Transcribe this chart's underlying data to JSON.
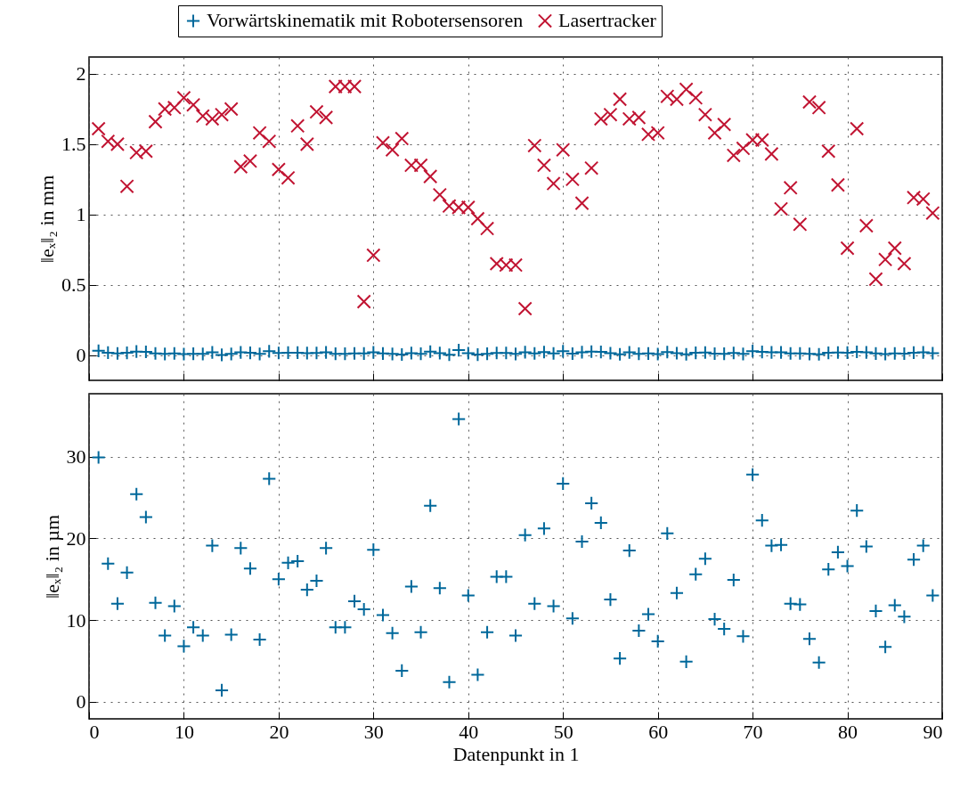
{
  "chart_data": [
    {
      "type": "scatter",
      "ylabel": "‖eₓ‖₂ in mm",
      "x": [
        1,
        2,
        3,
        4,
        5,
        6,
        7,
        8,
        9,
        10,
        11,
        12,
        13,
        14,
        15,
        16,
        17,
        18,
        19,
        20,
        21,
        22,
        23,
        24,
        25,
        26,
        27,
        28,
        29,
        30,
        31,
        32,
        33,
        34,
        35,
        36,
        37,
        38,
        39,
        40,
        41,
        42,
        43,
        44,
        45,
        46,
        47,
        48,
        49,
        50,
        51,
        52,
        53,
        54,
        55,
        56,
        57,
        58,
        59,
        60,
        61,
        62,
        63,
        64,
        65,
        66,
        67,
        68,
        69,
        70,
        71,
        72,
        73,
        74,
        75,
        76,
        77,
        78,
        79,
        80,
        81,
        82,
        83,
        84,
        85,
        86,
        87,
        88,
        89
      ],
      "xlim": [
        0,
        90
      ],
      "xticks": [
        0,
        10,
        20,
        30,
        40,
        50,
        60,
        70,
        80,
        90
      ],
      "ylim": [
        -0.18,
        2.12
      ],
      "yticks": [
        0,
        0.5,
        1,
        1.5,
        2
      ],
      "grid": true,
      "legend": "top",
      "tick_labels": "y",
      "series": [
        {
          "name": "Vorwärtskinematik mit Robotersensoren",
          "color": "#00689b",
          "marker": "plus",
          "values": [
            0.03,
            0.017,
            0.012,
            0.016,
            0.025,
            0.023,
            0.012,
            0.008,
            0.012,
            0.007,
            0.009,
            0.008,
            0.019,
            0.001,
            0.008,
            0.019,
            0.016,
            0.008,
            0.027,
            0.015,
            0.017,
            0.017,
            0.014,
            0.015,
            0.019,
            0.009,
            0.009,
            0.012,
            0.011,
            0.019,
            0.011,
            0.008,
            0.004,
            0.014,
            0.009,
            0.024,
            0.014,
            0.002,
            0.035,
            0.013,
            0.003,
            0.009,
            0.015,
            0.015,
            0.008,
            0.02,
            0.012,
            0.021,
            0.012,
            0.027,
            0.01,
            0.02,
            0.024,
            0.022,
            0.013,
            0.005,
            0.019,
            0.009,
            0.011,
            0.007,
            0.021,
            0.013,
            0.005,
            0.016,
            0.018,
            0.01,
            0.009,
            0.015,
            0.008,
            0.028,
            0.022,
            0.019,
            0.019,
            0.012,
            0.012,
            0.008,
            0.005,
            0.016,
            0.018,
            0.017,
            0.023,
            0.019,
            0.011,
            0.007,
            0.012,
            0.01,
            0.017,
            0.019,
            0.013
          ]
        },
        {
          "name": "Lasertracker",
          "color": "#c11432",
          "marker": "cross",
          "values": [
            1.61,
            1.52,
            1.5,
            1.2,
            1.44,
            1.45,
            1.66,
            1.75,
            1.76,
            1.83,
            1.78,
            1.7,
            1.68,
            1.71,
            1.75,
            1.34,
            1.38,
            1.58,
            1.52,
            1.32,
            1.26,
            1.63,
            1.5,
            1.73,
            1.69,
            1.91,
            1.91,
            1.91,
            0.38,
            0.71,
            1.51,
            1.46,
            1.54,
            1.35,
            1.35,
            1.27,
            1.14,
            1.06,
            1.05,
            1.05,
            0.97,
            0.9,
            0.65,
            0.64,
            0.64,
            0.33,
            1.49,
            1.35,
            1.22,
            1.46,
            1.25,
            1.08,
            1.33,
            1.68,
            1.71,
            1.82,
            1.68,
            1.69,
            1.57,
            1.58,
            1.84,
            1.82,
            1.89,
            1.83,
            1.71,
            1.58,
            1.64,
            1.42,
            1.47,
            1.53,
            1.53,
            1.43,
            1.04,
            1.19,
            0.93,
            1.8,
            1.76,
            1.45,
            1.21,
            0.76,
            1.61,
            0.92,
            0.54,
            0.68,
            0.76,
            0.65,
            1.12,
            1.11,
            1.01
          ]
        }
      ]
    },
    {
      "type": "scatter",
      "ylabel": "‖eₓ‖₂ in µm",
      "xlabel": "Datenpunkt in 1",
      "x": [
        1,
        2,
        3,
        4,
        5,
        6,
        7,
        8,
        9,
        10,
        11,
        12,
        13,
        14,
        15,
        16,
        17,
        18,
        19,
        20,
        21,
        22,
        23,
        24,
        25,
        26,
        27,
        28,
        29,
        30,
        31,
        32,
        33,
        34,
        35,
        36,
        37,
        38,
        39,
        40,
        41,
        42,
        43,
        44,
        45,
        46,
        47,
        48,
        49,
        50,
        51,
        52,
        53,
        54,
        55,
        56,
        57,
        58,
        59,
        60,
        61,
        62,
        63,
        64,
        65,
        66,
        67,
        68,
        69,
        70,
        71,
        72,
        73,
        74,
        75,
        76,
        77,
        78,
        79,
        80,
        81,
        82,
        83,
        84,
        85,
        86,
        87,
        88,
        89
      ],
      "xlim": [
        0,
        90
      ],
      "xticks": [
        0,
        10,
        20,
        30,
        40,
        50,
        60,
        70,
        80,
        90
      ],
      "ylim": [
        -2.1,
        37.7
      ],
      "yticks": [
        0,
        10,
        20,
        30
      ],
      "grid": true,
      "series": [
        {
          "color": "#00689b",
          "marker": "plus",
          "values": [
            29.9,
            16.9,
            12.0,
            15.8,
            25.4,
            22.6,
            12.1,
            8.1,
            11.7,
            6.8,
            9.1,
            8.1,
            19.1,
            1.4,
            8.2,
            18.8,
            16.3,
            7.6,
            27.3,
            15.0,
            17.0,
            17.2,
            13.7,
            14.8,
            18.8,
            9.1,
            9.1,
            12.3,
            11.3,
            18.6,
            10.6,
            8.4,
            3.8,
            14.1,
            8.5,
            24.0,
            13.9,
            2.4,
            34.6,
            13.0,
            3.3,
            8.5,
            15.3,
            15.3,
            8.1,
            20.4,
            12.0,
            21.2,
            11.7,
            26.7,
            10.2,
            19.6,
            24.3,
            21.9,
            12.5,
            5.3,
            18.5,
            8.7,
            10.7,
            7.4,
            20.6,
            13.3,
            4.9,
            15.6,
            17.5,
            10.1,
            8.9,
            14.9,
            8.0,
            27.8,
            22.2,
            19.1,
            19.2,
            12.0,
            11.9,
            7.7,
            4.8,
            16.2,
            18.3,
            16.6,
            23.4,
            19.0,
            11.1,
            6.7,
            11.8,
            10.4,
            17.4,
            19.1,
            13.0
          ]
        }
      ]
    }
  ]
}
